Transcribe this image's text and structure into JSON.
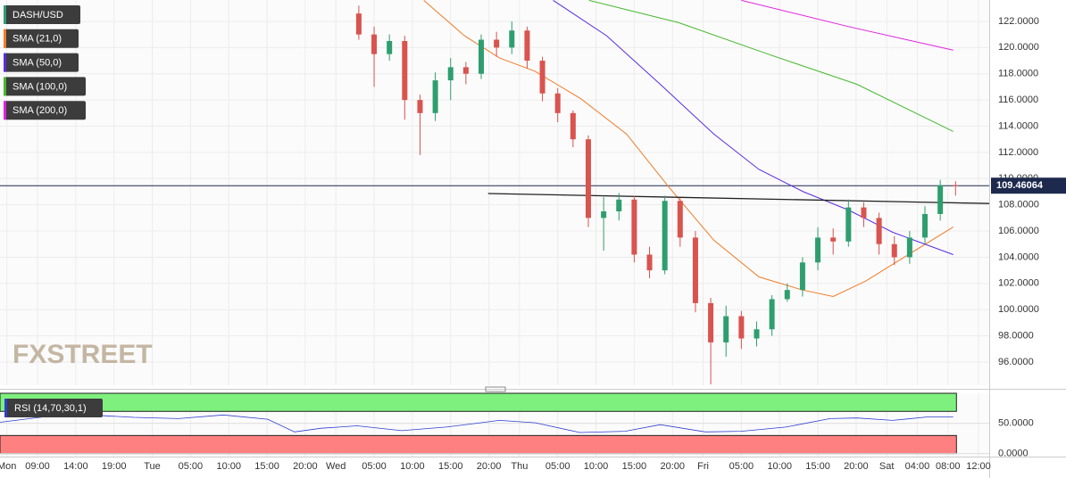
{
  "chart_data": [
    {
      "type": "candlestick",
      "title": "DASH/USD",
      "watermark": "FXSTREET",
      "up_color": "#2f9e6f",
      "down_color": "#d9534f",
      "x": [
        51,
        53,
        55,
        57,
        59,
        61,
        63,
        65,
        67,
        69,
        71,
        73,
        75,
        77,
        79,
        81,
        83,
        85,
        87,
        89,
        91,
        93,
        95,
        97,
        99,
        101,
        103,
        105,
        107,
        109,
        111,
        113,
        115,
        117,
        119,
        121,
        123,
        125,
        127,
        129
      ],
      "open": [
        122.6,
        121.0,
        119.5,
        120.5,
        116.0,
        115.0,
        117.5,
        118.5,
        118.0,
        120.6,
        120.0,
        121.3,
        119.0,
        116.5,
        115.0,
        113.0,
        107.0,
        107.5,
        108.4,
        104.2,
        103.0,
        108.3,
        105.5,
        100.5,
        97.5,
        99.5,
        97.8,
        98.5,
        100.8,
        101.5,
        103.6,
        105.5,
        105.2,
        107.8,
        107.0,
        105.0,
        104.0,
        105.5,
        107.3,
        109.5
      ],
      "high": [
        123.2,
        121.6,
        121.0,
        120.9,
        116.4,
        118.1,
        119.2,
        118.9,
        121.0,
        121.2,
        122.0,
        121.6,
        119.3,
        116.9,
        115.2,
        113.3,
        108.6,
        108.9,
        108.7,
        104.8,
        108.7,
        108.5,
        106.0,
        100.9,
        100.3,
        99.9,
        99.1,
        101.1,
        102.0,
        104.0,
        106.3,
        106.2,
        108.4,
        108.2,
        107.4,
        105.6,
        106.0,
        107.9,
        109.9,
        109.8
      ],
      "low": [
        120.6,
        117.0,
        119.0,
        114.5,
        111.8,
        114.4,
        116.0,
        117.2,
        117.6,
        119.3,
        119.5,
        118.4,
        115.9,
        114.3,
        112.4,
        106.3,
        104.5,
        106.8,
        103.6,
        102.4,
        102.7,
        104.8,
        99.8,
        94.3,
        96.4,
        97.0,
        97.2,
        98.0,
        100.6,
        101.0,
        103.0,
        104.2,
        104.8,
        106.3,
        104.2,
        103.4,
        103.5,
        105.0,
        106.8,
        108.7
      ],
      "close": [
        121.0,
        119.5,
        120.5,
        116.0,
        115.0,
        117.5,
        118.5,
        118.0,
        120.6,
        120.0,
        121.3,
        119.0,
        116.5,
        115.0,
        113.0,
        107.0,
        107.5,
        108.4,
        104.2,
        103.0,
        108.3,
        105.5,
        100.5,
        97.5,
        99.5,
        97.8,
        98.5,
        100.8,
        101.5,
        103.6,
        105.5,
        105.2,
        107.8,
        107.0,
        105.0,
        104.0,
        105.5,
        107.3,
        109.5,
        109.46064
      ],
      "series": [
        {
          "name": "SMA (21,0)",
          "color": "#f07b27",
          "x": [
            59.5,
            64.8,
            69.4,
            74,
            80,
            86,
            91.6,
            97.4,
            103.3,
            109,
            113,
            117.3,
            122,
            128.7
          ],
          "values": [
            123.6,
            120.9,
            119.2,
            118.2,
            116.1,
            113.4,
            109.3,
            105.3,
            102.5,
            101.5,
            101.0,
            102.2,
            103.9,
            106.3
          ]
        },
        {
          "name": "SMA (50,0)",
          "color": "#5b2be0",
          "x": [
            76.4,
            83.4,
            90.4,
            97.4,
            103.3,
            109.1,
            115,
            120.8,
            128.7
          ],
          "values": [
            123.6,
            120.9,
            117.2,
            113.4,
            110.7,
            109.0,
            107.6,
            105.9,
            104.2
          ]
        },
        {
          "name": "SMA (100,0)",
          "color": "#46b82e",
          "x": [
            81.1,
            92.8,
            104.5,
            116.1,
            128.7
          ],
          "values": [
            123.6,
            121.9,
            119.5,
            117.2,
            113.6
          ]
        },
        {
          "name": "SMA (200,0)",
          "color": "#e020e0",
          "x": [
            101,
            115,
            128.7
          ],
          "values": [
            123.6,
            121.6,
            119.8
          ]
        }
      ],
      "trendline": {
        "x": [
          67.9,
          133.4
        ],
        "values": [
          108.86,
          108.1
        ]
      },
      "last_price": 109.46064,
      "xlim": [
        4.1,
        133.4
      ],
      "xticks": [
        {
          "value": 5,
          "label": "Mon"
        },
        {
          "value": 9,
          "label": "09:00"
        },
        {
          "value": 14,
          "label": "14:00"
        },
        {
          "value": 19,
          "label": "19:00"
        },
        {
          "value": 24,
          "label": "Tue"
        },
        {
          "value": 29,
          "label": "05:00"
        },
        {
          "value": 34,
          "label": "10:00"
        },
        {
          "value": 39,
          "label": "15:00"
        },
        {
          "value": 44,
          "label": "20:00"
        },
        {
          "value": 48,
          "label": "Wed"
        },
        {
          "value": 53,
          "label": "05:00"
        },
        {
          "value": 58,
          "label": "10:00"
        },
        {
          "value": 63,
          "label": "15:00"
        },
        {
          "value": 68,
          "label": "20:00"
        },
        {
          "value": 72,
          "label": "Thu"
        },
        {
          "value": 77,
          "label": "05:00"
        },
        {
          "value": 82,
          "label": "10:00"
        },
        {
          "value": 87,
          "label": "15:00"
        },
        {
          "value": 92,
          "label": "20:00"
        },
        {
          "value": 96,
          "label": "Fri"
        },
        {
          "value": 101,
          "label": "05:00"
        },
        {
          "value": 106,
          "label": "10:00"
        },
        {
          "value": 111,
          "label": "15:00"
        },
        {
          "value": 116,
          "label": "20:00"
        },
        {
          "value": 120,
          "label": "Sat"
        },
        {
          "value": 124,
          "label": "04:00"
        },
        {
          "value": 128,
          "label": "08:00"
        },
        {
          "value": 132,
          "label": "12:00"
        }
      ],
      "ylim": [
        94.23,
        123.63
      ],
      "yticks": [
        {
          "value": 96,
          "label": "96.0000"
        },
        {
          "value": 98,
          "label": "98.0000"
        },
        {
          "value": 100,
          "label": "100.0000"
        },
        {
          "value": 102,
          "label": "102.0000"
        },
        {
          "value": 104,
          "label": "104.0000"
        },
        {
          "value": 106,
          "label": "106.0000"
        },
        {
          "value": 108,
          "label": "108.0000"
        },
        {
          "value": 110,
          "label": "110.0000"
        },
        {
          "value": 112,
          "label": "112.0000"
        },
        {
          "value": 114,
          "label": "114.0000"
        },
        {
          "value": 116,
          "label": "116.0000"
        },
        {
          "value": 118,
          "label": "118.0000"
        },
        {
          "value": 120,
          "label": "120.0000"
        },
        {
          "value": 122,
          "label": "122.0000"
        }
      ],
      "grid": true
    },
    {
      "type": "line",
      "series": [
        {
          "name": "RSI (14,70,30,1)",
          "color": "#2f3fd0",
          "x": [
            4.1,
            9.9,
            15.8,
            21.6,
            27.4,
            33.3,
            39.1,
            42.6,
            46.1,
            50.8,
            56.6,
            62.4,
            69.4,
            74.1,
            79.9,
            85.8,
            90.4,
            96.3,
            101,
            106.8,
            112.6,
            116.1,
            120.8,
            125.5,
            128.7
          ],
          "values": [
            52,
            61,
            64,
            60,
            58,
            64,
            57,
            36,
            42,
            46,
            38,
            44,
            55,
            51,
            35,
            37,
            48,
            36,
            37,
            44,
            58,
            59,
            55,
            61,
            61
          ]
        }
      ],
      "upper_band": [
        70,
        100
      ],
      "upper_color": "#7ef07e",
      "lower_band": [
        0,
        30
      ],
      "lower_color": "#ff8080",
      "ylim": [
        -5,
        100
      ],
      "yticks": [
        {
          "value": 50,
          "label": "50.0000"
        },
        {
          "value": 0,
          "label": "0.0000"
        }
      ],
      "grid": true
    }
  ]
}
